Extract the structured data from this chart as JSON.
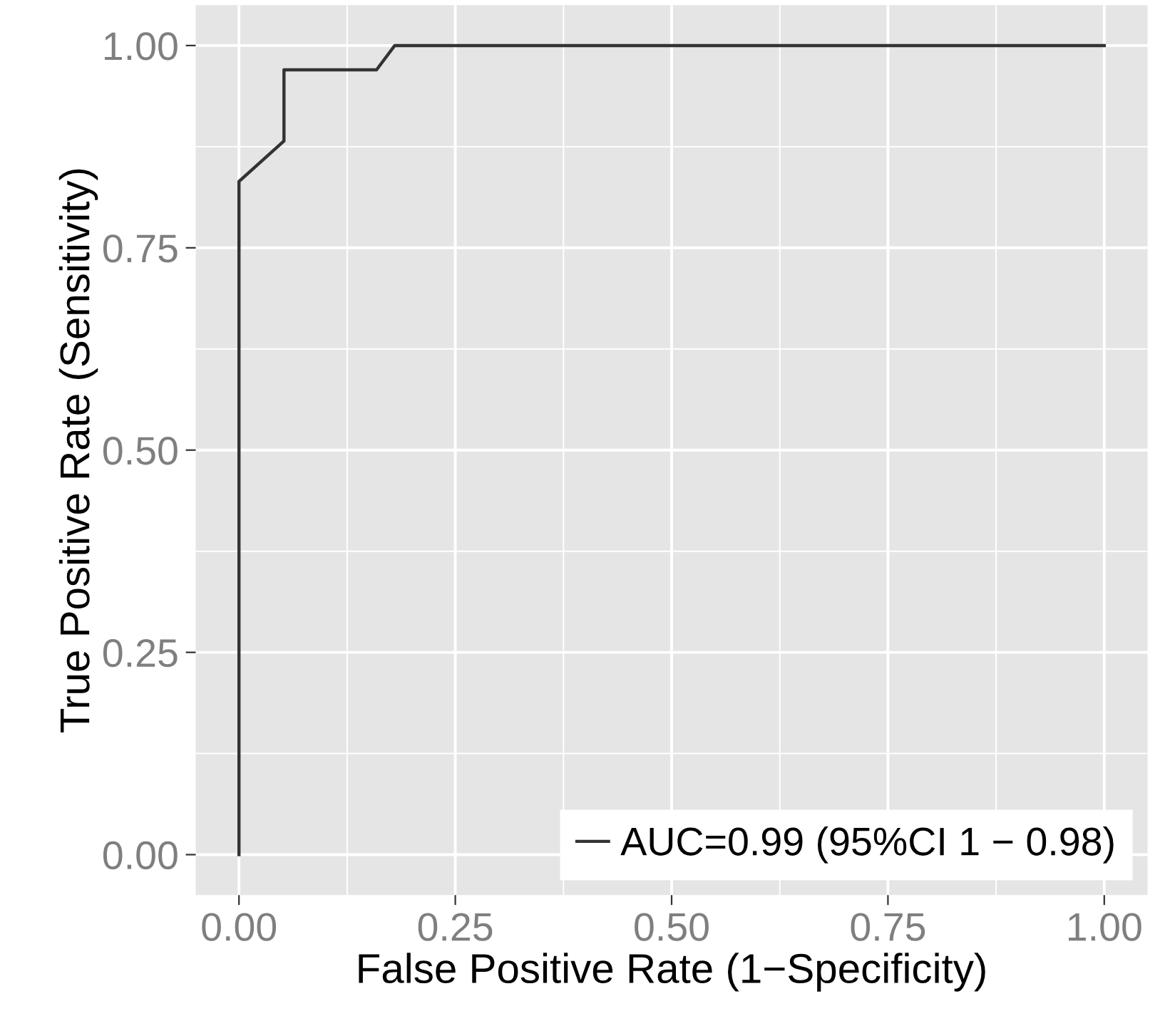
{
  "chart_data": {
    "type": "line",
    "xlabel": "False Positive Rate (1−Specificity)",
    "ylabel": "True Positive Rate (Sensitivity)",
    "xlim": [
      -0.05,
      1.05
    ],
    "ylim": [
      -0.05,
      1.05
    ],
    "xticks": [
      {
        "value": 0,
        "label": "0.00"
      },
      {
        "value": 0.25,
        "label": "0.25"
      },
      {
        "value": 0.5,
        "label": "0.50"
      },
      {
        "value": 0.75,
        "label": "0.75"
      },
      {
        "value": 1,
        "label": "1.00"
      }
    ],
    "yticks": [
      {
        "value": 0,
        "label": "0.00"
      },
      {
        "value": 0.25,
        "label": "0.25"
      },
      {
        "value": 0.5,
        "label": "0.50"
      },
      {
        "value": 0.75,
        "label": "0.75"
      },
      {
        "value": 1,
        "label": "1.00"
      }
    ],
    "grid": true,
    "legend": "bottom right",
    "line_style": "solid",
    "marker": "none",
    "series": [
      {
        "name": "AUC=0.99 (95%CI 1 − 0.98)",
        "color": "#333333",
        "x": [
          0,
          0,
          0.052,
          0.052,
          0.159,
          0.18,
          1
        ],
        "values": [
          0,
          0.832,
          0.882,
          0.97,
          0.97,
          1.0,
          1.0
        ]
      }
    ]
  }
}
